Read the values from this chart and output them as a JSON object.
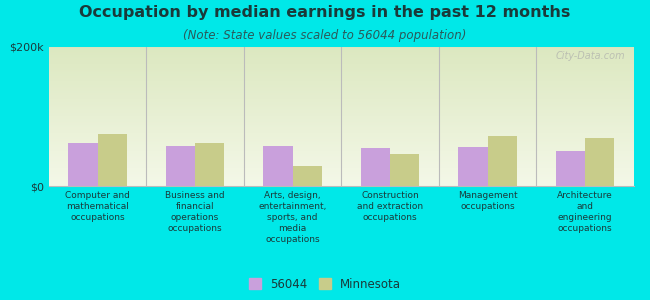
{
  "title": "Occupation by median earnings in the past 12 months",
  "subtitle": "(Note: State values scaled to 56044 population)",
  "categories": [
    "Computer and\nmathematical\noccupations",
    "Business and\nfinancial\noperations\noccupations",
    "Arts, design,\nentertainment,\nsports, and\nmedia\noccupations",
    "Construction\nand extraction\noccupations",
    "Management\noccupations",
    "Architecture\nand\nengineering\noccupations"
  ],
  "values_56044": [
    62000,
    58000,
    57000,
    55000,
    56000,
    50000
  ],
  "values_minnesota": [
    74000,
    61000,
    29000,
    46000,
    72000,
    69000
  ],
  "color_56044": "#c9a0dc",
  "color_minnesota": "#c8cc8a",
  "ylim_max": 200000,
  "background_color": "#00e8e8",
  "watermark": "City-Data.com",
  "legend_label_56044": "56044",
  "legend_label_minnesota": "Minnesota",
  "title_fontsize": 11.5,
  "subtitle_fontsize": 8.5,
  "tick_fontsize": 8,
  "cat_fontsize": 6.5,
  "legend_fontsize": 8.5,
  "bar_width": 0.3,
  "divider_color": "#bbbbbb",
  "text_color": "#1a3a3a",
  "subtitle_color": "#2a5a5a"
}
